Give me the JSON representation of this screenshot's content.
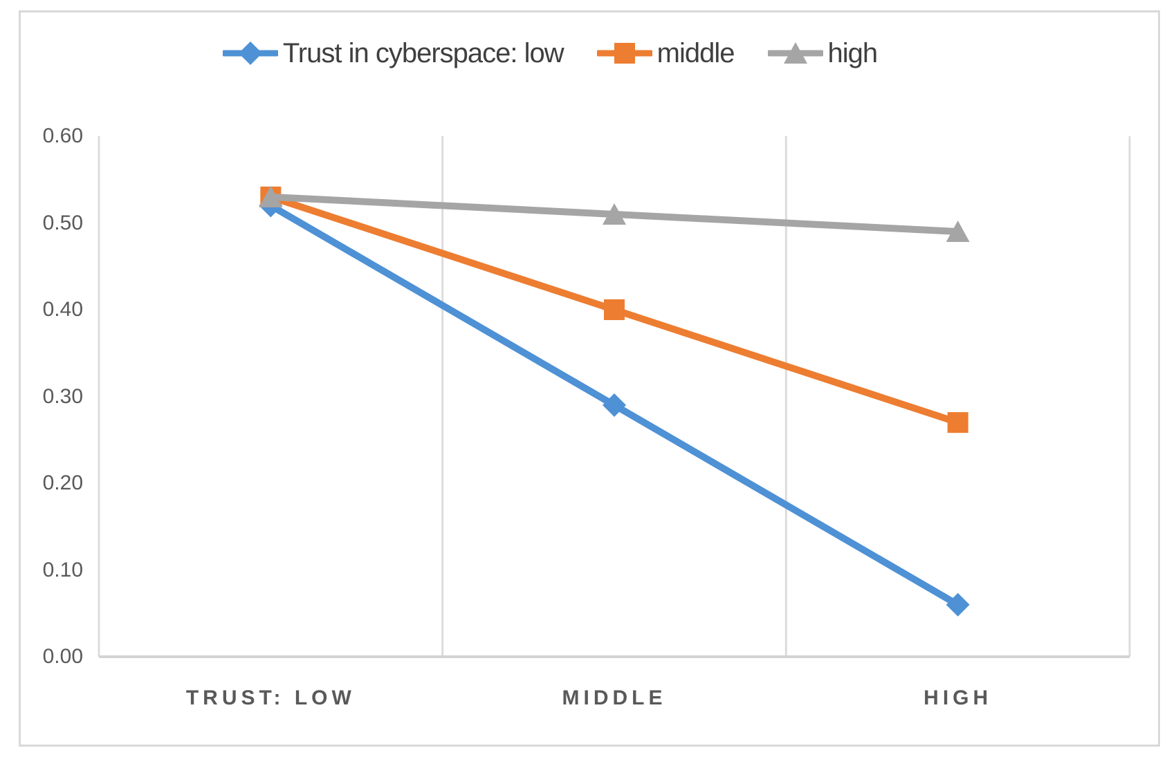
{
  "chart_data": {
    "type": "line",
    "title": "",
    "xlabel": "",
    "ylabel": "",
    "categories": [
      "TRUST: LOW",
      "MIDDLE",
      "HIGH"
    ],
    "series": [
      {
        "name": "Trust in cyberspace: low",
        "marker": "diamond",
        "color": "#4E91D5",
        "values": [
          0.52,
          0.29,
          0.06
        ]
      },
      {
        "name": "middle",
        "marker": "square",
        "color": "#ED7D31",
        "values": [
          0.53,
          0.4,
          0.27
        ]
      },
      {
        "name": "high",
        "marker": "triangle",
        "color": "#A5A5A5",
        "values": [
          0.53,
          0.51,
          0.49
        ]
      }
    ],
    "yticks": [
      {
        "value": 0.6,
        "label": "0.60"
      },
      {
        "value": 0.5,
        "label": "0.50"
      },
      {
        "value": 0.4,
        "label": "0.40"
      },
      {
        "value": 0.3,
        "label": "0.30"
      },
      {
        "value": 0.2,
        "label": "0.20"
      },
      {
        "value": 0.1,
        "label": "0.10"
      },
      {
        "value": 0.0,
        "label": "0.00"
      }
    ],
    "ylim": [
      0,
      0.6
    ],
    "legend_position": "top",
    "grid": "vertical category separators",
    "colors": {
      "gridline": "#DCDCDC",
      "axis_line": "#D3D3D3",
      "frame_border": "#D9D9D9",
      "axis_text": "#595959",
      "legend_text": "#3F3F3F"
    }
  }
}
